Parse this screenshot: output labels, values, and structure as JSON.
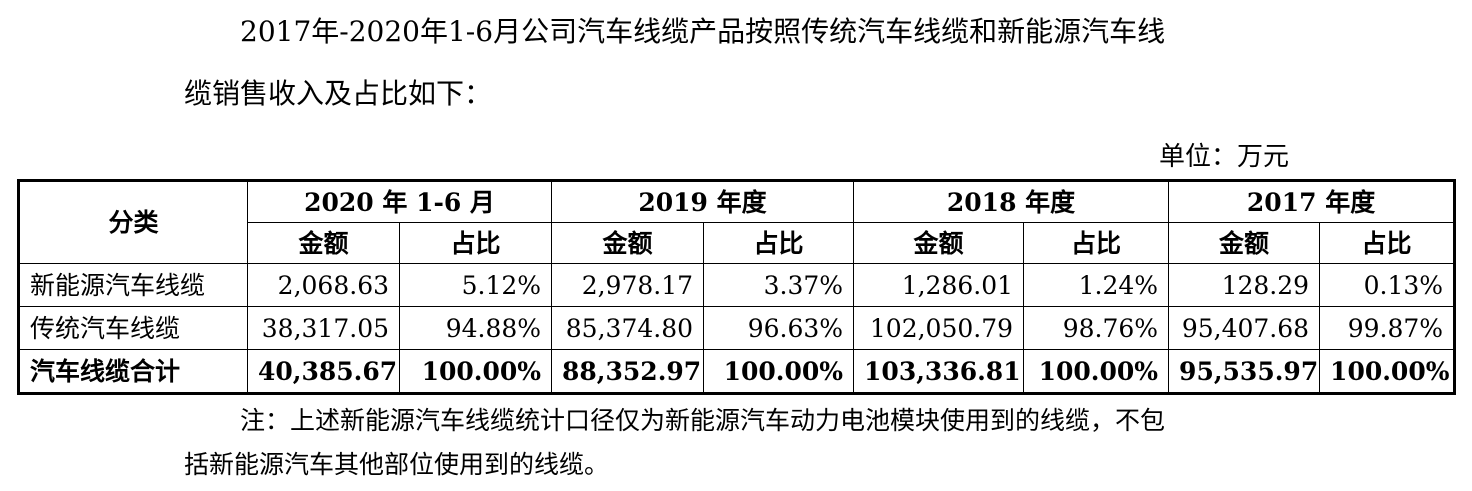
{
  "intro": {
    "line1": "2017年-2020年1-6月公司汽车线缆产品按照传统汽车线缆和新能源汽车线",
    "line2": "缆销售收入及占比如下："
  },
  "unit_label": "单位：万元",
  "table": {
    "category_header": "分类",
    "periods": [
      "2020 年 1-6 月",
      "2019 年度",
      "2018 年度",
      "2017 年度"
    ],
    "amount_label": "金额",
    "ratio_label": "占比",
    "rows": [
      {
        "label": "新能源汽车线缆",
        "cells": [
          "2,068.63",
          "5.12%",
          "2,978.17",
          "3.37%",
          "1,286.01",
          "1.24%",
          "128.29",
          "0.13%"
        ]
      },
      {
        "label": "传统汽车线缆",
        "cells": [
          "38,317.05",
          "94.88%",
          "85,374.80",
          "96.63%",
          "102,050.79",
          "98.76%",
          "95,407.68",
          "99.87%"
        ]
      },
      {
        "label": "汽车线缆合计",
        "cells": [
          "40,385.67",
          "100.00%",
          "88,352.97",
          "100.00%",
          "103,336.81",
          "100.00%",
          "95,535.97",
          "100.00%"
        ]
      }
    ]
  },
  "note": {
    "line1": "注：上述新能源汽车线缆统计口径仅为新能源汽车动力电池模块使用到的线缆，不包",
    "line2": "括新能源汽车其他部位使用到的线缆。"
  }
}
